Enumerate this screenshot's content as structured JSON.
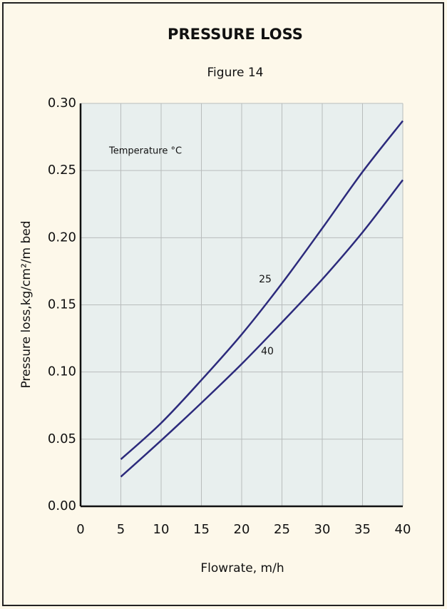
{
  "chart_data": {
    "type": "line",
    "title": "PRESSURE LOSS",
    "subtitle": "Figure 14",
    "x_label": "Flowrate, m/h",
    "y_label": "Pressure loss,kg/cm²/m bed",
    "annotation": "Temperature °C",
    "x": [
      5,
      10,
      15,
      20,
      25,
      30,
      35,
      40
    ],
    "series": [
      {
        "name": "25",
        "color": "#2c2a7c",
        "values": [
          0.035,
          0.062,
          0.094,
          0.128,
          0.166,
          0.207,
          0.249,
          0.287
        ]
      },
      {
        "name": "40",
        "color": "#2c2a7c",
        "values": [
          0.022,
          0.049,
          0.077,
          0.106,
          0.137,
          0.169,
          0.204,
          0.243
        ]
      }
    ],
    "xlim": [
      0,
      40
    ],
    "xticks": [
      0,
      5,
      10,
      15,
      20,
      25,
      30,
      35,
      40
    ],
    "ylim": [
      0,
      0.3
    ],
    "yticks": [
      {
        "value": 0,
        "label": "0.00"
      },
      {
        "value": 0.05,
        "label": "0.05"
      },
      {
        "value": 0.1,
        "label": "0.10"
      },
      {
        "value": 0.15,
        "label": "0.15"
      },
      {
        "value": 0.2,
        "label": "0.20"
      },
      {
        "value": 0.25,
        "label": "0.25"
      },
      {
        "value": 0.3,
        "label": "0.30"
      }
    ],
    "grid": true
  }
}
